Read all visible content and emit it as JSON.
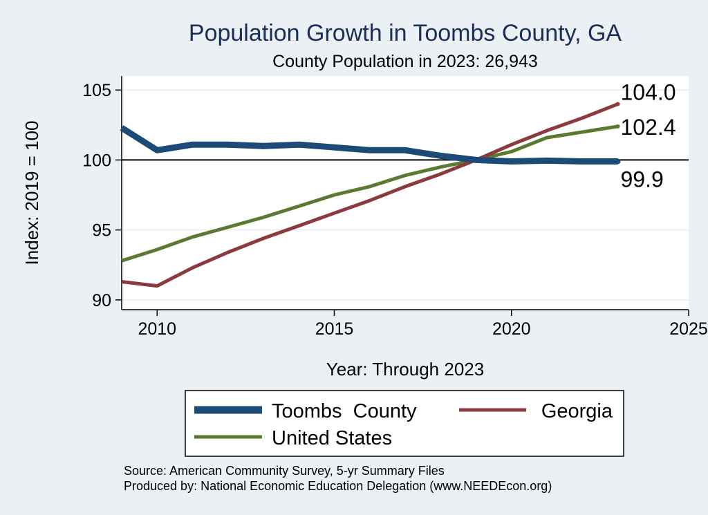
{
  "chart_data": {
    "type": "line",
    "title": "Population Growth in Toombs County, GA",
    "subtitle": "County Population in 2023: 26,943",
    "xlabel": "Year: Through 2023",
    "ylabel": "Index: 2019 = 100",
    "xlim": [
      2009,
      2025
    ],
    "ylim": [
      89.3,
      106
    ],
    "xticks": [
      2010,
      2015,
      2020,
      2025
    ],
    "yticks": [
      90,
      95,
      100,
      105
    ],
    "reference_line": 100,
    "grid": true,
    "legend_position": "bottom",
    "x": [
      2009,
      2010,
      2011,
      2012,
      2013,
      2014,
      2015,
      2016,
      2017,
      2018,
      2019,
      2020,
      2021,
      2022,
      2023
    ],
    "series": [
      {
        "name": "Toombs  County",
        "color": "#1c4b78",
        "values": [
          102.3,
          100.7,
          101.1,
          101.1,
          101.0,
          101.1,
          100.9,
          100.7,
          100.7,
          100.3,
          100.0,
          99.9,
          99.95,
          99.9,
          99.9
        ],
        "end_label": "99.9"
      },
      {
        "name": "Georgia",
        "color": "#8c3a3e",
        "values": [
          91.3,
          91.0,
          92.3,
          93.4,
          94.4,
          95.3,
          96.2,
          97.1,
          98.1,
          99.0,
          100.0,
          101.1,
          102.1,
          103.0,
          104.0
        ],
        "end_label": "104.0"
      },
      {
        "name": "United States",
        "color": "#5a7a32",
        "values": [
          92.8,
          93.6,
          94.5,
          95.2,
          95.9,
          96.7,
          97.5,
          98.1,
          98.9,
          99.5,
          100.0,
          100.6,
          101.6,
          102.0,
          102.4
        ],
        "end_label": "102.4"
      }
    ]
  },
  "footer": {
    "source": "Source: American Community Survey, 5-yr Summary Files",
    "produced": "Produced by: National Economic Education Delegation (www.NEEDEcon.org)"
  }
}
